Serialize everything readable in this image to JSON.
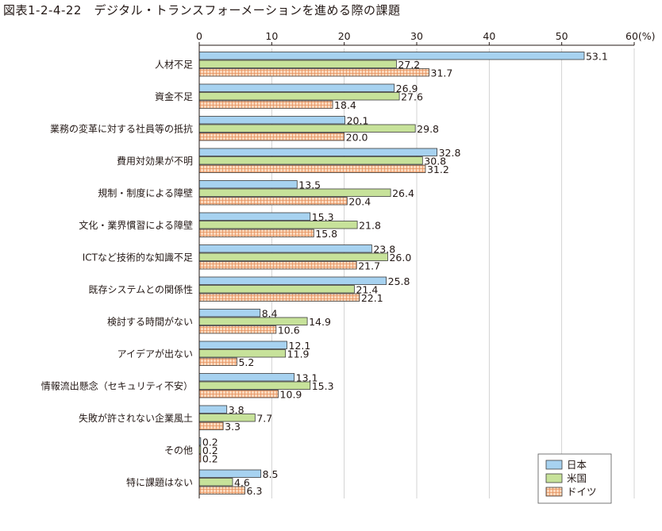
{
  "title": "図表1-2-4-22　デジタル・トランスフォーメーションを進める際の課題",
  "colors": {
    "japan_fill": "#a7d2f0",
    "usa_fill": "#c7e29a",
    "germany_fill": "#fbd9bd",
    "germany_grid": "#e5905c",
    "stroke": "#3c3c3c"
  },
  "chart_data": {
    "type": "bar",
    "orientation": "horizontal",
    "xlim": [
      0,
      60
    ],
    "ticks": [
      "0",
      "10",
      "20",
      "30",
      "40",
      "50",
      "60(%)"
    ],
    "tick_values": [
      0,
      10,
      20,
      30,
      40,
      50,
      60
    ],
    "legend_position": "bottom-right",
    "categories": [
      "人材不足",
      "資金不足",
      "業務の変革に対する社員等の抵抗",
      "費用対効果が不明",
      "規制・制度による障壁",
      "文化・業界慣習による障壁",
      "ICTなど技術的な知識不足",
      "既存システムとの関係性",
      "検討する時間がない",
      "アイデアが出ない",
      "情報流出懸念（セキュリティ不安）",
      "失敗が許されない企業風土",
      "その他",
      "特に課題はない"
    ],
    "series": [
      {
        "name": "日本",
        "values": [
          53.1,
          26.9,
          20.1,
          32.8,
          13.5,
          15.3,
          23.8,
          25.8,
          8.4,
          12.1,
          13.1,
          3.8,
          0.2,
          8.5
        ]
      },
      {
        "name": "米国",
        "values": [
          27.2,
          27.6,
          29.8,
          30.8,
          26.4,
          21.8,
          26.0,
          21.4,
          14.9,
          11.9,
          15.3,
          7.7,
          0.2,
          4.6
        ]
      },
      {
        "name": "ドイツ",
        "values": [
          31.7,
          18.4,
          20.0,
          31.2,
          20.4,
          15.8,
          21.7,
          22.1,
          10.6,
          5.2,
          10.9,
          3.3,
          0.2,
          6.3
        ]
      }
    ]
  }
}
